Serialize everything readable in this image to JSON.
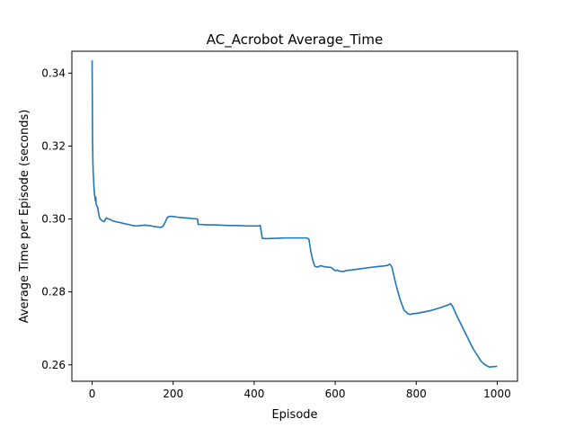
{
  "chart_data": {
    "type": "line",
    "title": "AC_Acrobot Average_Time",
    "xlabel": "Episode",
    "ylabel": "Average Time per Episode (seconds)",
    "xlim": [
      -50,
      1050
    ],
    "ylim": [
      0.2555,
      0.346
    ],
    "xticks": [
      0,
      200,
      400,
      600,
      800,
      1000
    ],
    "yticks": [
      0.26,
      0.28,
      0.3,
      0.32,
      0.34
    ],
    "ytick_labels": [
      "0.26",
      "0.28",
      "0.30",
      "0.32",
      "0.34"
    ],
    "grid": false,
    "line_color": "#1f77b4",
    "series": [
      {
        "x": [
          0,
          1,
          2,
          3,
          4,
          5,
          6,
          7,
          8,
          9,
          10,
          12,
          14,
          16,
          18,
          20,
          25,
          30,
          35,
          40,
          45,
          50,
          60,
          70,
          80,
          90,
          100,
          110,
          120,
          130,
          140,
          150,
          160,
          170,
          175,
          180,
          185,
          190,
          200,
          210,
          220,
          230,
          240,
          250,
          260,
          262,
          265,
          270,
          280,
          300,
          320,
          340,
          360,
          380,
          400,
          410,
          415,
          420,
          430,
          450,
          480,
          500,
          520,
          530,
          535,
          540,
          545,
          550,
          555,
          560,
          565,
          570,
          580,
          590,
          600,
          605,
          610,
          620,
          630,
          640,
          660,
          680,
          700,
          720,
          730,
          735,
          740,
          750,
          760,
          770,
          780,
          785,
          790,
          800,
          820,
          840,
          860,
          880,
          885,
          890,
          900,
          920,
          940,
          960,
          970,
          980,
          990,
          1000
        ],
        "values": [
          0.3435,
          0.3215,
          0.315,
          0.312,
          0.31,
          0.308,
          0.3065,
          0.306,
          0.305,
          0.306,
          0.304,
          0.3035,
          0.303,
          0.3015,
          0.3005,
          0.3,
          0.2995,
          0.2993,
          0.3003,
          0.3,
          0.2998,
          0.2995,
          0.2992,
          0.299,
          0.2987,
          0.2985,
          0.2982,
          0.2981,
          0.2982,
          0.2983,
          0.2982,
          0.298,
          0.2978,
          0.2977,
          0.298,
          0.299,
          0.3003,
          0.3007,
          0.3007,
          0.3005,
          0.3004,
          0.3003,
          0.3002,
          0.3001,
          0.3,
          0.2985,
          0.2985,
          0.2985,
          0.2984,
          0.2984,
          0.2983,
          0.2982,
          0.2982,
          0.2981,
          0.2981,
          0.2981,
          0.2982,
          0.2947,
          0.2946,
          0.2947,
          0.2948,
          0.2948,
          0.2948,
          0.2948,
          0.2945,
          0.291,
          0.2885,
          0.287,
          0.2868,
          0.287,
          0.2872,
          0.287,
          0.2868,
          0.2867,
          0.2858,
          0.286,
          0.2857,
          0.2856,
          0.2859,
          0.286,
          0.2863,
          0.2866,
          0.2869,
          0.2871,
          0.2873,
          0.2876,
          0.2868,
          0.282,
          0.278,
          0.275,
          0.274,
          0.2738,
          0.274,
          0.2741,
          0.2745,
          0.275,
          0.2757,
          0.2765,
          0.2768,
          0.276,
          0.2735,
          0.269,
          0.2645,
          0.261,
          0.26,
          0.2594,
          0.2595,
          0.2596
        ]
      }
    ]
  }
}
